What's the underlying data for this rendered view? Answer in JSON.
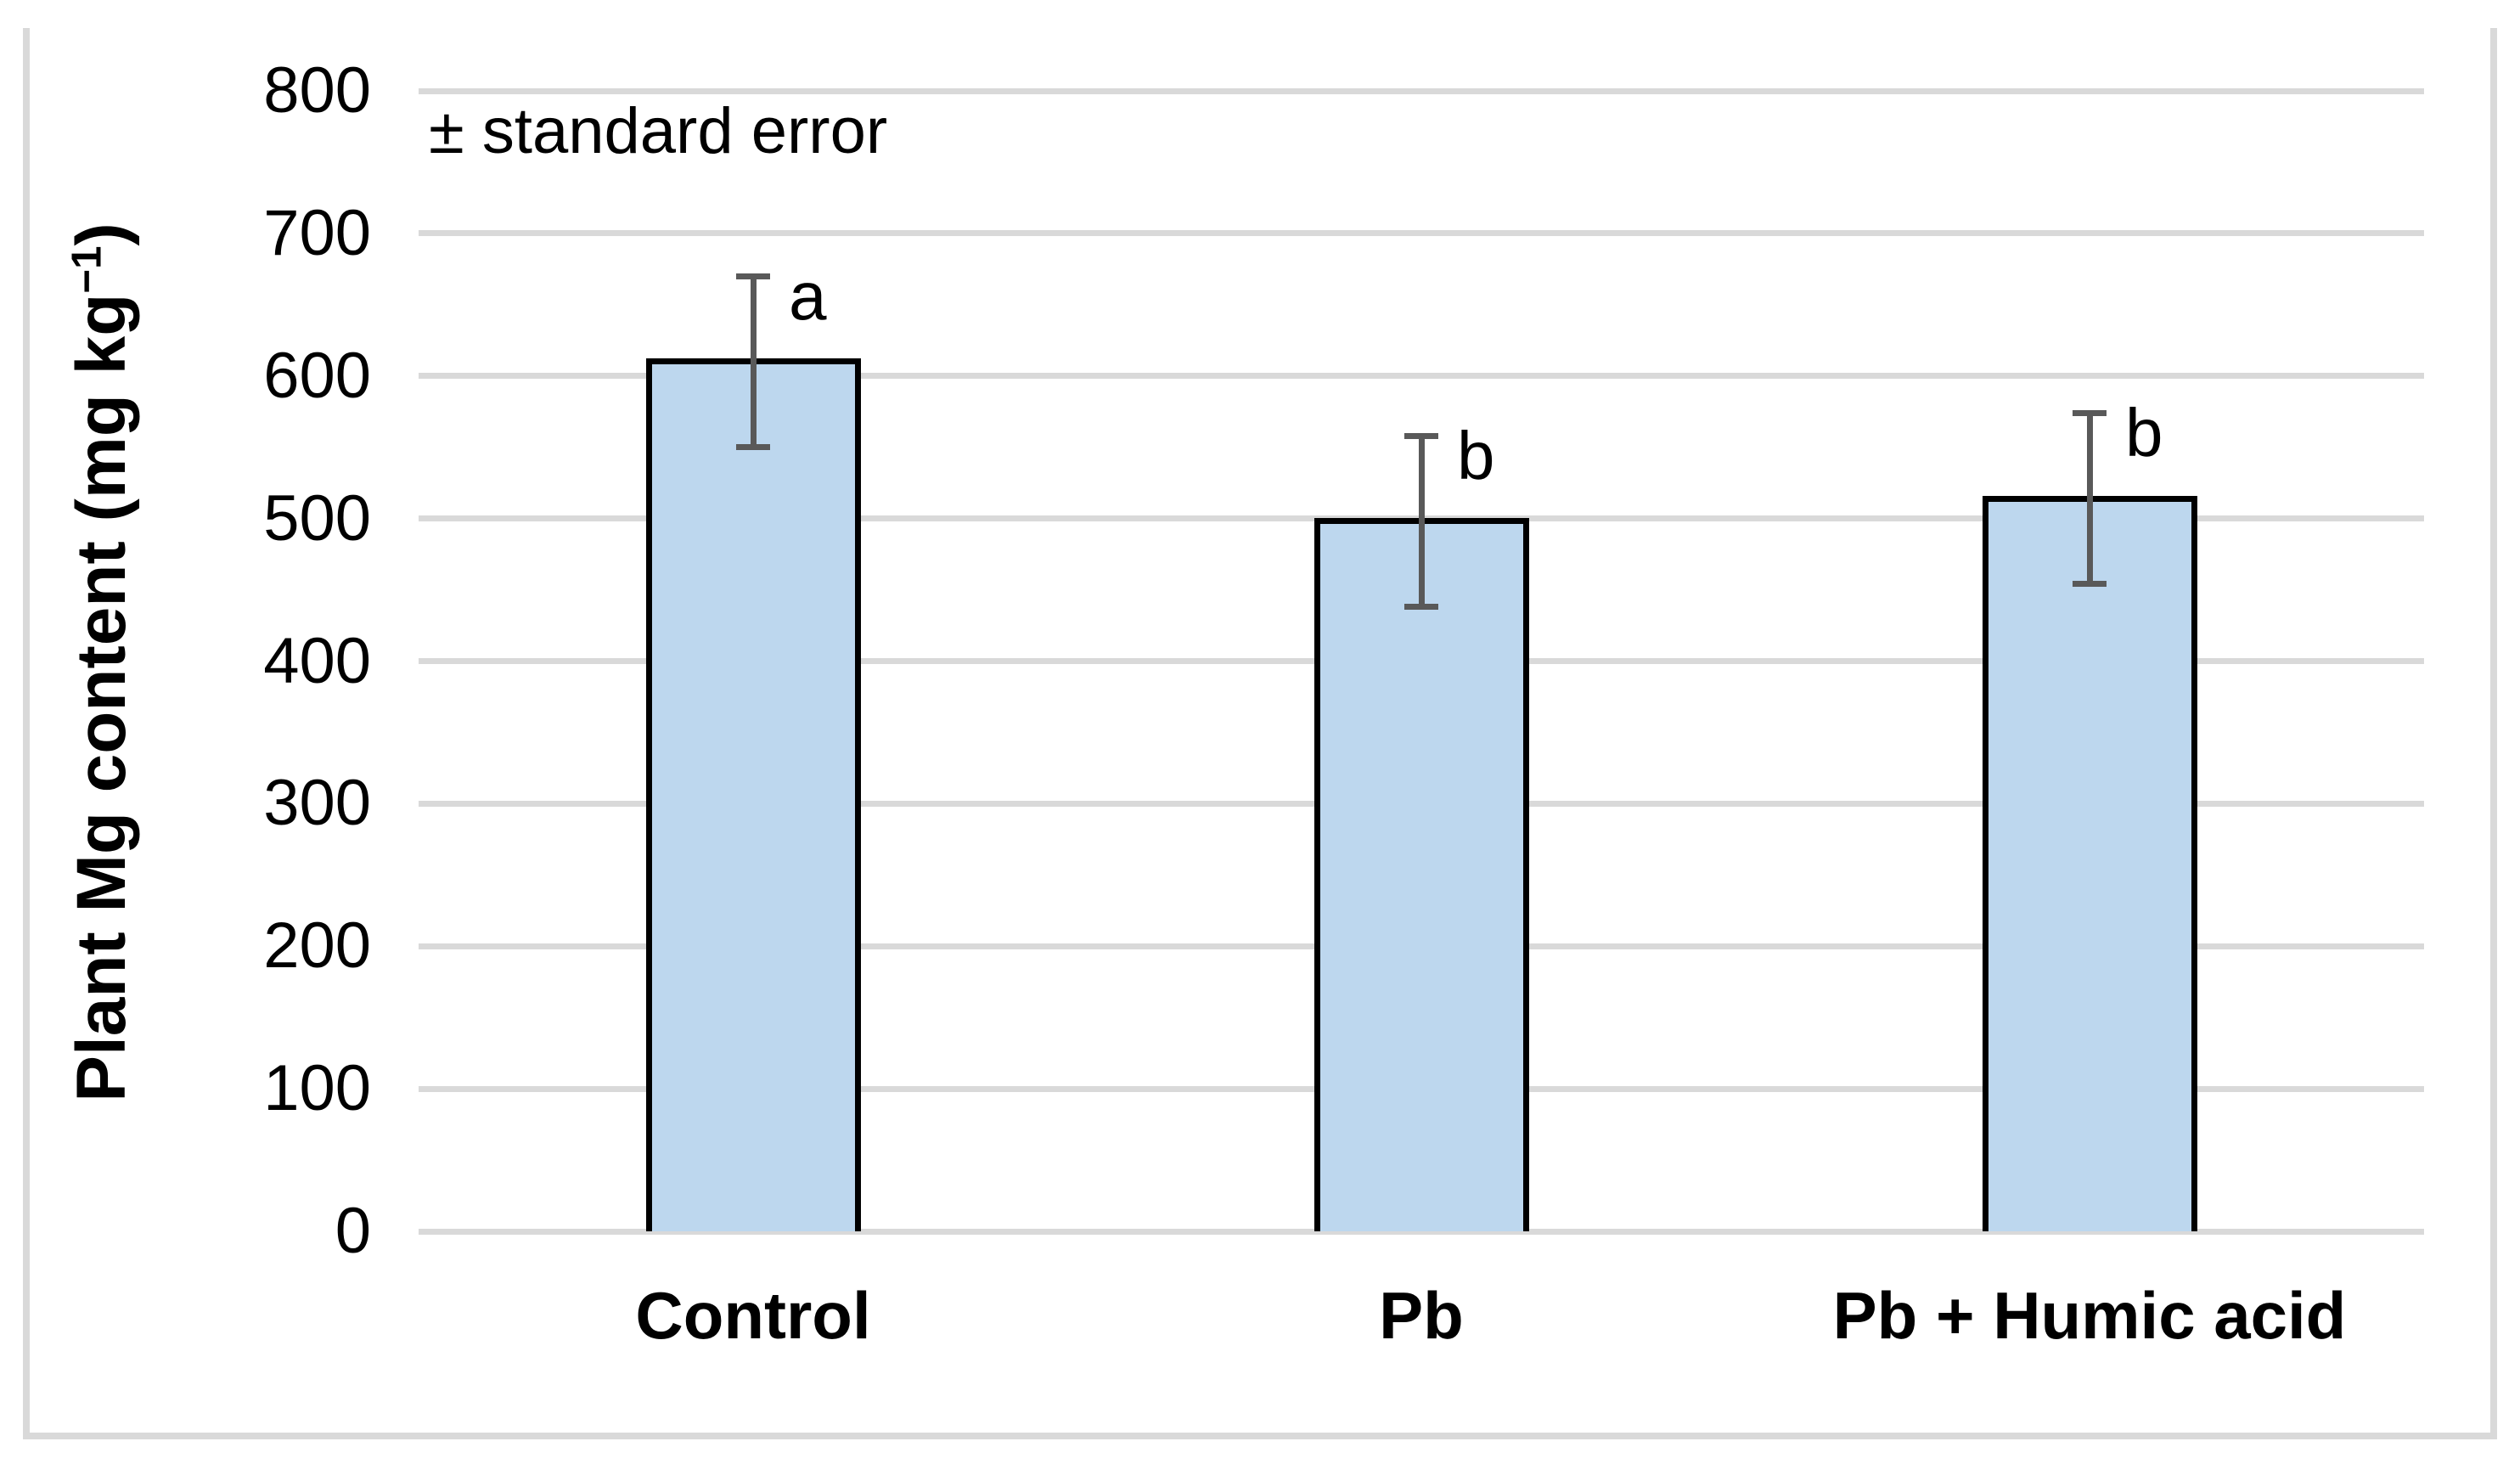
{
  "figure": {
    "background": "#ffffff",
    "border_color": "#d9d9d9",
    "annotation": "± standard error",
    "y_axis": {
      "title_prefix": "Plant Mg content (mg kg",
      "title_sup": "−1",
      "title_suffix": ")"
    }
  },
  "chart_data": {
    "type": "bar",
    "title": "",
    "xlabel": "",
    "ylabel": "Plant Mg content (mg kg−1)",
    "annotation": "± standard error",
    "categories": [
      "Control",
      "Pb",
      "Pb + Humic acid"
    ],
    "values": [
      610,
      498,
      514
    ],
    "standard_errors": [
      60,
      60,
      60
    ],
    "significance_letters": [
      "a",
      "b",
      "b"
    ],
    "ylim": [
      0,
      800
    ],
    "yticks": [
      0,
      100,
      200,
      300,
      400,
      500,
      600,
      700,
      800
    ],
    "grid": true,
    "legend": "none",
    "bar_color": "#bdd7ee",
    "bar_border_color": "#000000",
    "error_bar_color": "#595959",
    "gridline_color": "#d9d9d9",
    "text_color": "#000000"
  }
}
